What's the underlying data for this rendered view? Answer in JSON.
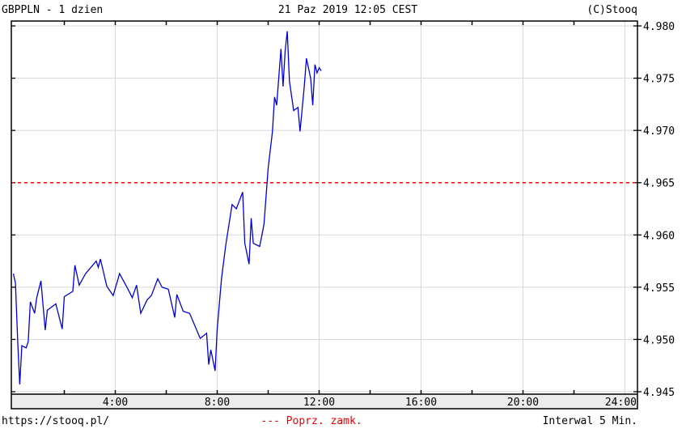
{
  "header": {
    "symbol_title": "GBPPLN - 1 dzien",
    "timestamp": "21 Paz 2019 12:05 CEST",
    "copyright": "(C)Stooq"
  },
  "footer": {
    "url": "https://stooq.pl/",
    "legend_prev_close": "--- Poprz. zamk.",
    "interval": "Interwal 5 Min."
  },
  "colors": {
    "line": "#0000dd",
    "prev_close": "#ee0000",
    "grid": "#d8d8d8",
    "axis_band": "#ececec"
  },
  "chart_data": {
    "type": "line",
    "xlim": [
      "0:00",
      "24:00"
    ],
    "ylim": [
      4.945,
      4.98
    ],
    "grid": true,
    "x_ticks": [
      "4:00",
      "8:00",
      "12:00",
      "16:00",
      "20:00",
      "24:00"
    ],
    "y_ticks": [
      "4.945",
      "4.950",
      "4.955",
      "4.960",
      "4.965",
      "4.970",
      "4.975",
      "4.980"
    ],
    "y_tick_values": [
      4.945,
      4.95,
      4.955,
      4.96,
      4.965,
      4.97,
      4.975,
      4.98
    ],
    "prev_close": 4.965,
    "series": [
      {
        "x": [
          "0:00",
          "0:05",
          "0:10",
          "0:15",
          "0:20",
          "0:30",
          "0:35",
          "0:40",
          "0:50",
          "0:55",
          "1:05",
          "1:15",
          "1:20",
          "1:40",
          "1:55",
          "2:00",
          "2:20",
          "2:25",
          "2:35",
          "2:50",
          "3:15",
          "3:20",
          "3:25",
          "3:40",
          "3:55",
          "4:10",
          "4:30",
          "4:40",
          "4:50",
          "5:00",
          "5:15",
          "5:25",
          "5:40",
          "5:50",
          "6:05",
          "6:20",
          "6:25",
          "6:40",
          "6:55",
          "7:20",
          "7:35",
          "7:40",
          "7:45",
          "7:55",
          "8:00",
          "8:10",
          "8:20",
          "8:35",
          "8:45",
          "9:00",
          "9:05",
          "9:15",
          "9:20",
          "9:25",
          "9:40",
          "9:50",
          "10:00",
          "10:10",
          "10:15",
          "10:20",
          "10:30",
          "10:35",
          "10:40",
          "10:45",
          "10:50",
          "11:00",
          "11:10",
          "11:15",
          "11:25",
          "11:30",
          "11:40",
          "11:45",
          "11:50",
          "11:55",
          "12:00",
          "12:05"
        ],
        "y": [
          4.9563,
          4.9554,
          4.95,
          4.9457,
          4.9494,
          4.9492,
          4.9498,
          4.9536,
          4.9525,
          4.954,
          4.9556,
          4.9509,
          4.9528,
          4.9534,
          4.951,
          4.9541,
          4.9546,
          4.9571,
          4.9552,
          4.9563,
          4.9575,
          4.9569,
          4.9577,
          4.9551,
          4.9542,
          4.9563,
          4.9548,
          4.954,
          4.9552,
          4.9525,
          4.9538,
          4.9542,
          4.9558,
          4.955,
          4.9548,
          4.9521,
          4.9543,
          4.9527,
          4.9525,
          4.9501,
          4.9506,
          4.9476,
          4.949,
          4.947,
          4.951,
          4.9558,
          4.959,
          4.9629,
          4.9625,
          4.9641,
          4.9592,
          4.9572,
          4.9616,
          4.9592,
          4.9589,
          4.961,
          4.9664,
          4.9699,
          4.9732,
          4.9724,
          4.9778,
          4.9742,
          4.9776,
          4.9795,
          4.9747,
          4.9719,
          4.9722,
          4.9699,
          4.9742,
          4.9769,
          4.975,
          4.9724,
          4.9763,
          4.9755,
          4.976,
          4.9757
        ]
      }
    ]
  }
}
